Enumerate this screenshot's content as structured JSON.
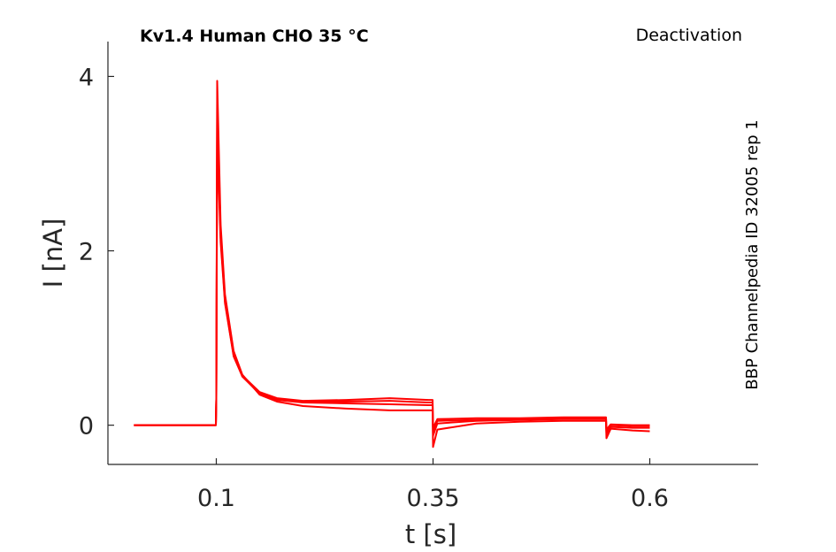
{
  "chart_data": {
    "type": "line",
    "title": "Kv1.4  Human  CHO  35 °C",
    "subtitle": "Deactivation",
    "annotation": "BBP Channelpedia ID 32005 rep 1",
    "xlabel": "t [s]",
    "ylabel": "I [nA]",
    "xlim": [
      -0.025,
      0.725
    ],
    "ylim": [
      -0.45,
      4.4
    ],
    "xticks": [
      0.1,
      0.35,
      0.6
    ],
    "xtick_labels": [
      "0.1",
      "0.35",
      "0.6"
    ],
    "yticks": [
      0,
      2,
      4
    ],
    "ytick_labels": [
      "0",
      "2",
      "4"
    ],
    "grid": false,
    "line_color": "#ff0000",
    "series": [
      {
        "x": [
          0.005,
          0.05,
          0.0995,
          0.1,
          0.101,
          0.105,
          0.11,
          0.12,
          0.13,
          0.15,
          0.17,
          0.2,
          0.25,
          0.3,
          0.345,
          0.3495,
          0.35,
          0.355,
          0.4,
          0.45,
          0.5,
          0.5495,
          0.55,
          0.555,
          0.58,
          0.6
        ],
        "y": [
          0.0,
          0.0,
          0.0,
          0.3,
          3.95,
          2.3,
          1.5,
          0.85,
          0.58,
          0.35,
          0.27,
          0.22,
          0.19,
          0.17,
          0.17,
          0.17,
          -0.25,
          -0.05,
          0.02,
          0.04,
          0.05,
          0.05,
          -0.15,
          -0.04,
          -0.06,
          -0.07
        ]
      },
      {
        "x": [
          0.005,
          0.05,
          0.0995,
          0.1,
          0.101,
          0.105,
          0.11,
          0.12,
          0.13,
          0.15,
          0.17,
          0.2,
          0.25,
          0.3,
          0.345,
          0.3495,
          0.35,
          0.355,
          0.4,
          0.45,
          0.5,
          0.5495,
          0.55,
          0.555,
          0.58,
          0.6
        ],
        "y": [
          0.0,
          0.0,
          0.0,
          0.3,
          3.7,
          2.2,
          1.45,
          0.82,
          0.56,
          0.36,
          0.29,
          0.26,
          0.25,
          0.24,
          0.23,
          0.23,
          -0.12,
          0.02,
          0.05,
          0.06,
          0.07,
          0.07,
          -0.1,
          -0.02,
          -0.03,
          -0.03
        ]
      },
      {
        "x": [
          0.005,
          0.05,
          0.0995,
          0.1,
          0.101,
          0.105,
          0.11,
          0.12,
          0.13,
          0.15,
          0.17,
          0.2,
          0.25,
          0.3,
          0.345,
          0.3495,
          0.35,
          0.355,
          0.4,
          0.45,
          0.5,
          0.5495,
          0.55,
          0.555,
          0.58,
          0.6
        ],
        "y": [
          0.0,
          0.0,
          0.0,
          0.3,
          3.5,
          2.15,
          1.42,
          0.8,
          0.57,
          0.38,
          0.31,
          0.28,
          0.29,
          0.31,
          0.29,
          0.29,
          -0.08,
          0.05,
          0.06,
          0.07,
          0.08,
          0.08,
          -0.08,
          0.0,
          -0.01,
          -0.01
        ]
      },
      {
        "x": [
          0.005,
          0.05,
          0.0995,
          0.1,
          0.101,
          0.105,
          0.11,
          0.12,
          0.13,
          0.15,
          0.17,
          0.2,
          0.25,
          0.3,
          0.345,
          0.3495,
          0.35,
          0.355,
          0.4,
          0.45,
          0.5,
          0.5495,
          0.55,
          0.555,
          0.58,
          0.6
        ],
        "y": [
          0.0,
          0.0,
          0.0,
          0.3,
          3.3,
          2.1,
          1.4,
          0.79,
          0.56,
          0.37,
          0.3,
          0.27,
          0.27,
          0.28,
          0.26,
          0.26,
          -0.03,
          0.07,
          0.08,
          0.08,
          0.09,
          0.09,
          -0.05,
          0.01,
          0.0,
          0.0
        ]
      }
    ]
  }
}
